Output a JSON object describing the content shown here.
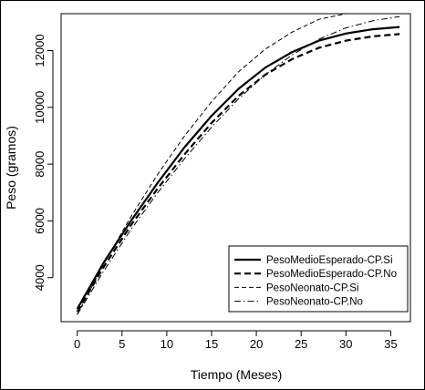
{
  "chart_data": {
    "type": "line",
    "title": "",
    "xlabel": "Tiempo (Meses)",
    "ylabel": "Peso (gramos)",
    "xlim": [
      -1.8,
      37.2
    ],
    "ylim": [
      2450,
      13300
    ],
    "xticks": [
      0,
      5,
      10,
      15,
      20,
      25,
      30,
      35
    ],
    "yticks": [
      4000,
      6000,
      8000,
      10000,
      12000
    ],
    "grid": false,
    "legend_position": "bottom-right",
    "x": [
      0,
      3,
      6,
      9,
      12,
      15,
      18,
      21,
      24,
      27,
      30,
      33,
      36
    ],
    "series": [
      {
        "name": "PesoMedioEsperado-CP.Si",
        "line_style": "solid",
        "line_weight": "thick",
        "values": [
          2900,
          4550,
          6000,
          7350,
          8600,
          9700,
          10650,
          11400,
          11950,
          12350,
          12600,
          12750,
          12830
        ]
      },
      {
        "name": "PesoMedioEsperado-CP.No",
        "line_style": "dashed",
        "line_weight": "thick",
        "values": [
          2800,
          4400,
          5850,
          7150,
          8350,
          9450,
          10400,
          11150,
          11700,
          12100,
          12350,
          12500,
          12580
        ]
      },
      {
        "name": "PesoNeonato-CP.Si",
        "line_style": "dashed",
        "line_weight": "thin",
        "values": [
          2700,
          4500,
          6150,
          7650,
          9000,
          10200,
          11250,
          12050,
          12650,
          13100,
          13300,
          13300,
          13300
        ]
      },
      {
        "name": "PesoNeonato-CP.No",
        "line_style": "dashdot",
        "line_weight": "thin",
        "values": [
          2700,
          4250,
          5700,
          7000,
          8200,
          9300,
          10300,
          11150,
          11850,
          12400,
          12800,
          13050,
          13200
        ]
      }
    ],
    "colors": {
      "lines": "#000000",
      "background": "#ffffff"
    }
  }
}
